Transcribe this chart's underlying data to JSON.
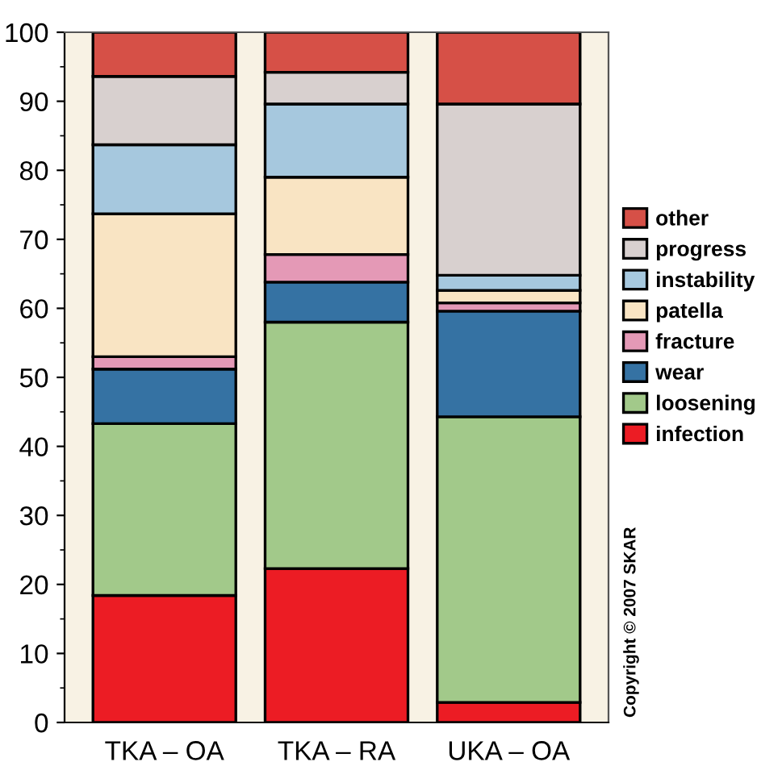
{
  "chart_data": {
    "type": "bar",
    "stacked": true,
    "categories": [
      "TKA – OA",
      "TKA – RA",
      "UKA – OA"
    ],
    "series": [
      {
        "name": "infection",
        "color": "#ec1c24",
        "values": [
          18.4,
          22.3,
          2.9
        ]
      },
      {
        "name": "loosening",
        "color": "#a2c98a",
        "values": [
          24.9,
          35.7,
          41.4
        ]
      },
      {
        "name": "wear",
        "color": "#3572a3",
        "values": [
          7.9,
          5.8,
          15.3
        ]
      },
      {
        "name": "fracture",
        "color": "#e499b6",
        "values": [
          1.8,
          4.0,
          1.2
        ]
      },
      {
        "name": "patella",
        "color": "#f9e4c3",
        "values": [
          20.7,
          11.2,
          1.8
        ]
      },
      {
        "name": "instability",
        "color": "#a6c8de",
        "values": [
          10.0,
          10.6,
          2.2
        ]
      },
      {
        "name": "progress",
        "color": "#d8d0cf",
        "values": [
          9.9,
          4.6,
          24.8
        ]
      },
      {
        "name": "other",
        "color": "#d65047",
        "values": [
          6.4,
          5.8,
          10.4
        ]
      }
    ],
    "ylim": [
      0,
      100
    ],
    "yticks": [
      0,
      10,
      20,
      30,
      40,
      50,
      60,
      70,
      80,
      90,
      100
    ],
    "grid": false,
    "legend": "right",
    "annotations": [
      "Copyright © 2007 SKAR"
    ]
  }
}
